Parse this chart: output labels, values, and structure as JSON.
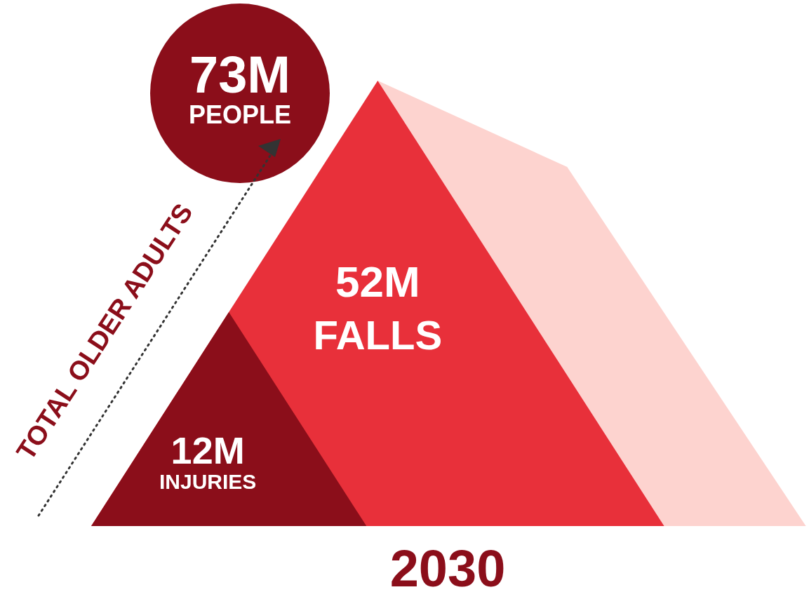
{
  "chart_data": {
    "type": "other",
    "title": "2030",
    "categories": [
      "PEOPLE",
      "FALLS",
      "INJURIES"
    ],
    "values": [
      73,
      52,
      12
    ],
    "value_labels": [
      "73M",
      "52M",
      "12M"
    ],
    "colors": [
      "#8b0e1a",
      "#e8303a",
      "#8b0e1a"
    ],
    "annotations": [
      "TOTAL OLDER ADULTS"
    ]
  }
}
